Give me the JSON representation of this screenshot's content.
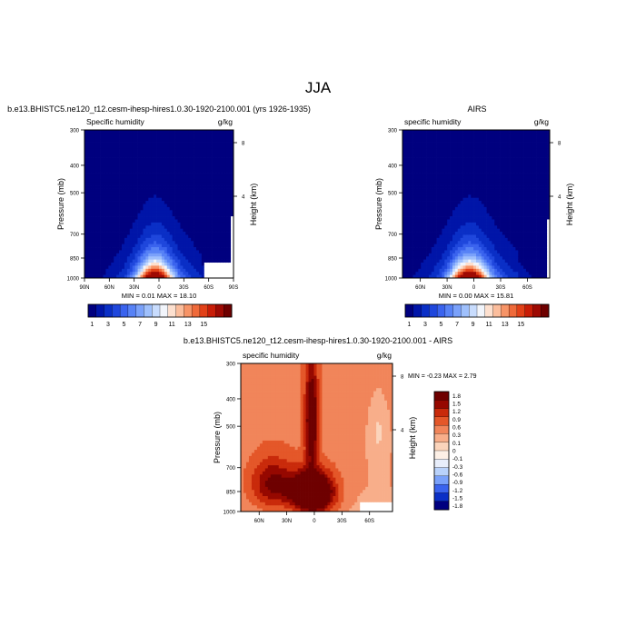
{
  "figure_title": "JJA",
  "colors": {
    "sequential": [
      "#00007f",
      "#0015a8",
      "#0a2fc6",
      "#1f47dc",
      "#3a63ee",
      "#5782f6",
      "#7aa1fa",
      "#9fc0fc",
      "#c8dcfd",
      "#f2f5fb",
      "#fde0cf",
      "#fbbd9c",
      "#f79467",
      "#ef6a3a",
      "#e24118",
      "#c81d07",
      "#9e0a03",
      "#6e0000"
    ],
    "difference": [
      "#00007f",
      "#0a2fc6",
      "#3a63ee",
      "#7aa1fa",
      "#b9d2fb",
      "#e8eefb",
      "#fdf0e6",
      "#fbd4bb",
      "#f8ae8a",
      "#f1855a",
      "#e45729",
      "#c92a0b",
      "#960800",
      "#6e0000"
    ]
  },
  "chart_data": [
    {
      "type": "heatmap",
      "title": "b.e13.BHISTC5.ne120_t12.cesm-ihesp-hires1.0.30-1920-2100.001 (yrs 1926-1935)",
      "subtitle_left": "Specific humidity",
      "subtitle_right": "g/kg",
      "xlabel": "",
      "ylabel": "Pressure (mb)",
      "y2label": "Height (km)",
      "x_ticks": [
        "90N",
        "60N",
        "30N",
        "0",
        "30S",
        "60S",
        "90S"
      ],
      "y_ticks": [
        "300",
        "400",
        "500",
        "700",
        "850",
        "1000"
      ],
      "y2_ticks": [
        "8",
        "4"
      ],
      "xlim": [
        90,
        -90
      ],
      "ylim": [
        1000,
        300
      ],
      "y_scale": "log",
      "min_max_text": "MIN =   0.01  MAX =  18.10",
      "levels": [
        1,
        2,
        3,
        4,
        5,
        6,
        7,
        8,
        9,
        10,
        11,
        12,
        13,
        14,
        15,
        16
      ],
      "colorbar_labels": [
        "1",
        "3",
        "5",
        "7",
        "9",
        "11",
        "13",
        "15"
      ],
      "peak": {
        "lat": 5,
        "pressure": 1000,
        "value": 18.1
      },
      "missing": [
        {
          "lat_from": -55,
          "lat_to": -90,
          "p_from": 880,
          "p_to": 1000
        },
        {
          "lat_from": -88,
          "lat_to": -90,
          "p_from": 610,
          "p_to": 880
        }
      ],
      "colorbar": "horizontal"
    },
    {
      "type": "heatmap",
      "title": "AIRS",
      "subtitle_left": "specific humidity",
      "subtitle_right": "g/kg",
      "xlabel": "",
      "ylabel": "Pressure (mb)",
      "y2label": "Height (km)",
      "x_ticks": [
        "60N",
        "30N",
        "0",
        "30S",
        "60S"
      ],
      "y_ticks": [
        "300",
        "400",
        "500",
        "700",
        "850",
        "1000"
      ],
      "y2_ticks": [
        "8",
        "4"
      ],
      "xlim": [
        80,
        -85
      ],
      "ylim": [
        1000,
        300
      ],
      "y_scale": "log",
      "min_max_text": "MIN =   0.00  MAX =  15.81",
      "levels": [
        1,
        2,
        3,
        4,
        5,
        6,
        7,
        8,
        9,
        10,
        11,
        12,
        13,
        14,
        15,
        16
      ],
      "colorbar_labels": [
        "1",
        "3",
        "5",
        "7",
        "9",
        "11",
        "13",
        "15"
      ],
      "peak": {
        "lat": 5,
        "pressure": 1000,
        "value": 15.81
      },
      "missing": [
        {
          "lat_from": -82,
          "lat_to": -85,
          "p_from": 620,
          "p_to": 1000
        }
      ],
      "colorbar": "horizontal"
    },
    {
      "type": "heatmap",
      "title": "b.e13.BHISTC5.ne120_t12.cesm-ihesp-hires1.0.30-1920-2100.001 - AIRS",
      "subtitle_left": "specific humidity",
      "subtitle_right": "g/kg",
      "xlabel": "",
      "ylabel": "Pressure (mb)",
      "y2label": "Height (km)",
      "x_ticks": [
        "60N",
        "30N",
        "0",
        "30S",
        "60S"
      ],
      "y_ticks": [
        "300",
        "400",
        "500",
        "700",
        "850",
        "1000"
      ],
      "y2_ticks": [
        "8",
        "4"
      ],
      "xlim": [
        80,
        -85
      ],
      "ylim": [
        1000,
        300
      ],
      "y_scale": "log",
      "min_max_text": "MIN =  -0.23  MAX =   2.79",
      "levels": [
        -1.8,
        -1.5,
        -1.2,
        -0.9,
        -0.6,
        -0.3,
        -0.1,
        0,
        0.1,
        0.3,
        0.6,
        0.9,
        1.2,
        1.5,
        1.8
      ],
      "colorbar_labels": [
        "1.8",
        "1.5",
        "1.2",
        "0.9",
        "0.6",
        "0.3",
        "0.1",
        "0",
        "-0.1",
        "-0.3",
        "-0.6",
        "-0.9",
        "-1.2",
        "-1.5",
        "-1.8"
      ],
      "peak": {
        "lat": 0,
        "pressure": 860,
        "value": 2.79
      },
      "missing": [
        {
          "lat_from": -50,
          "lat_to": -85,
          "p_from": 920,
          "p_to": 1000
        }
      ],
      "colorbar": "vertical"
    }
  ]
}
